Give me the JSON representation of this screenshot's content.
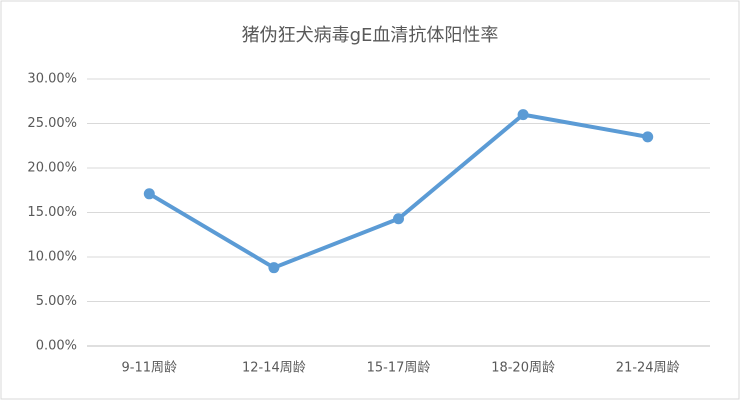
{
  "chart_data": {
    "type": "line",
    "title": "猪伪狂犬病毒gE血清抗体阳性率",
    "categories": [
      "9-11周龄",
      "12-14周龄",
      "15-17周龄",
      "18-20周龄",
      "21-24周龄"
    ],
    "series": [
      {
        "name": "阳性率",
        "color": "#5b9bd5",
        "values": [
          17.1,
          8.8,
          14.3,
          26.0,
          23.5
        ]
      }
    ],
    "ylim": [
      0,
      30
    ],
    "yticks": [
      {
        "value": 0,
        "label": "0.00%"
      },
      {
        "value": 5,
        "label": "5.00%"
      },
      {
        "value": 10,
        "label": "10.00%"
      },
      {
        "value": 15,
        "label": "15.00%"
      },
      {
        "value": 20,
        "label": "20.00%"
      },
      {
        "value": 25,
        "label": "25.00%"
      },
      {
        "value": 30,
        "label": "30.00%"
      }
    ],
    "grid": true
  }
}
